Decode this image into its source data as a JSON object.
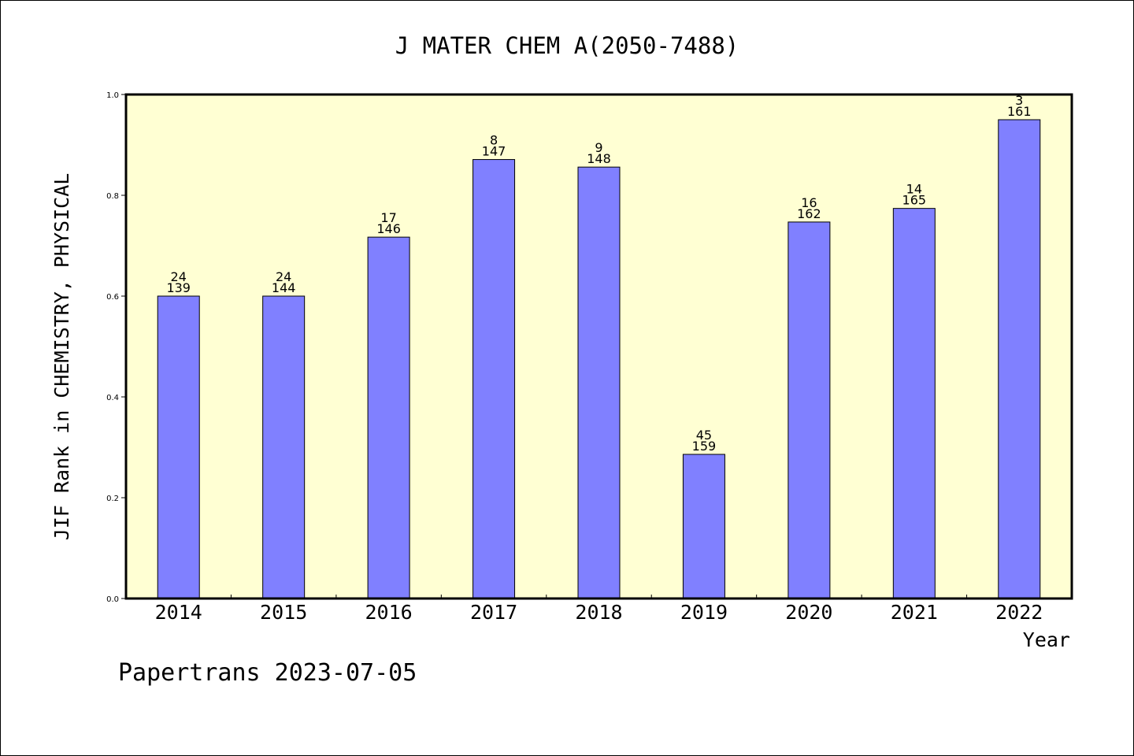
{
  "chart_data": {
    "type": "bar",
    "title": "J MATER CHEM A(2050-7488)",
    "xlabel": "Year",
    "ylabel": "JIF Rank in CHEMISTRY, PHYSICAL",
    "footer": "Papertrans 2023-07-05",
    "ylim": [
      0,
      1.0
    ],
    "yticks": [
      "0.0",
      "0.2",
      "0.4",
      "0.6",
      "0.8",
      "1.0"
    ],
    "grid": false,
    "categories": [
      "2014",
      "2015",
      "2016",
      "2017",
      "2018",
      "2019",
      "2020",
      "2021",
      "2022"
    ],
    "values": [
      0.6,
      0.6,
      0.717,
      0.871,
      0.856,
      0.286,
      0.747,
      0.774,
      0.95
    ],
    "ranks": [
      "24",
      "24",
      "17",
      "8",
      "9",
      "45",
      "16",
      "14",
      "3"
    ],
    "totals": [
      "139",
      "144",
      "146",
      "147",
      "148",
      "159",
      "162",
      "165",
      "161"
    ],
    "colors": {
      "plot_background": "#ffffd3",
      "bar_fill": "#8080ff",
      "bar_stroke": "#000000",
      "axis": "#000000"
    }
  }
}
